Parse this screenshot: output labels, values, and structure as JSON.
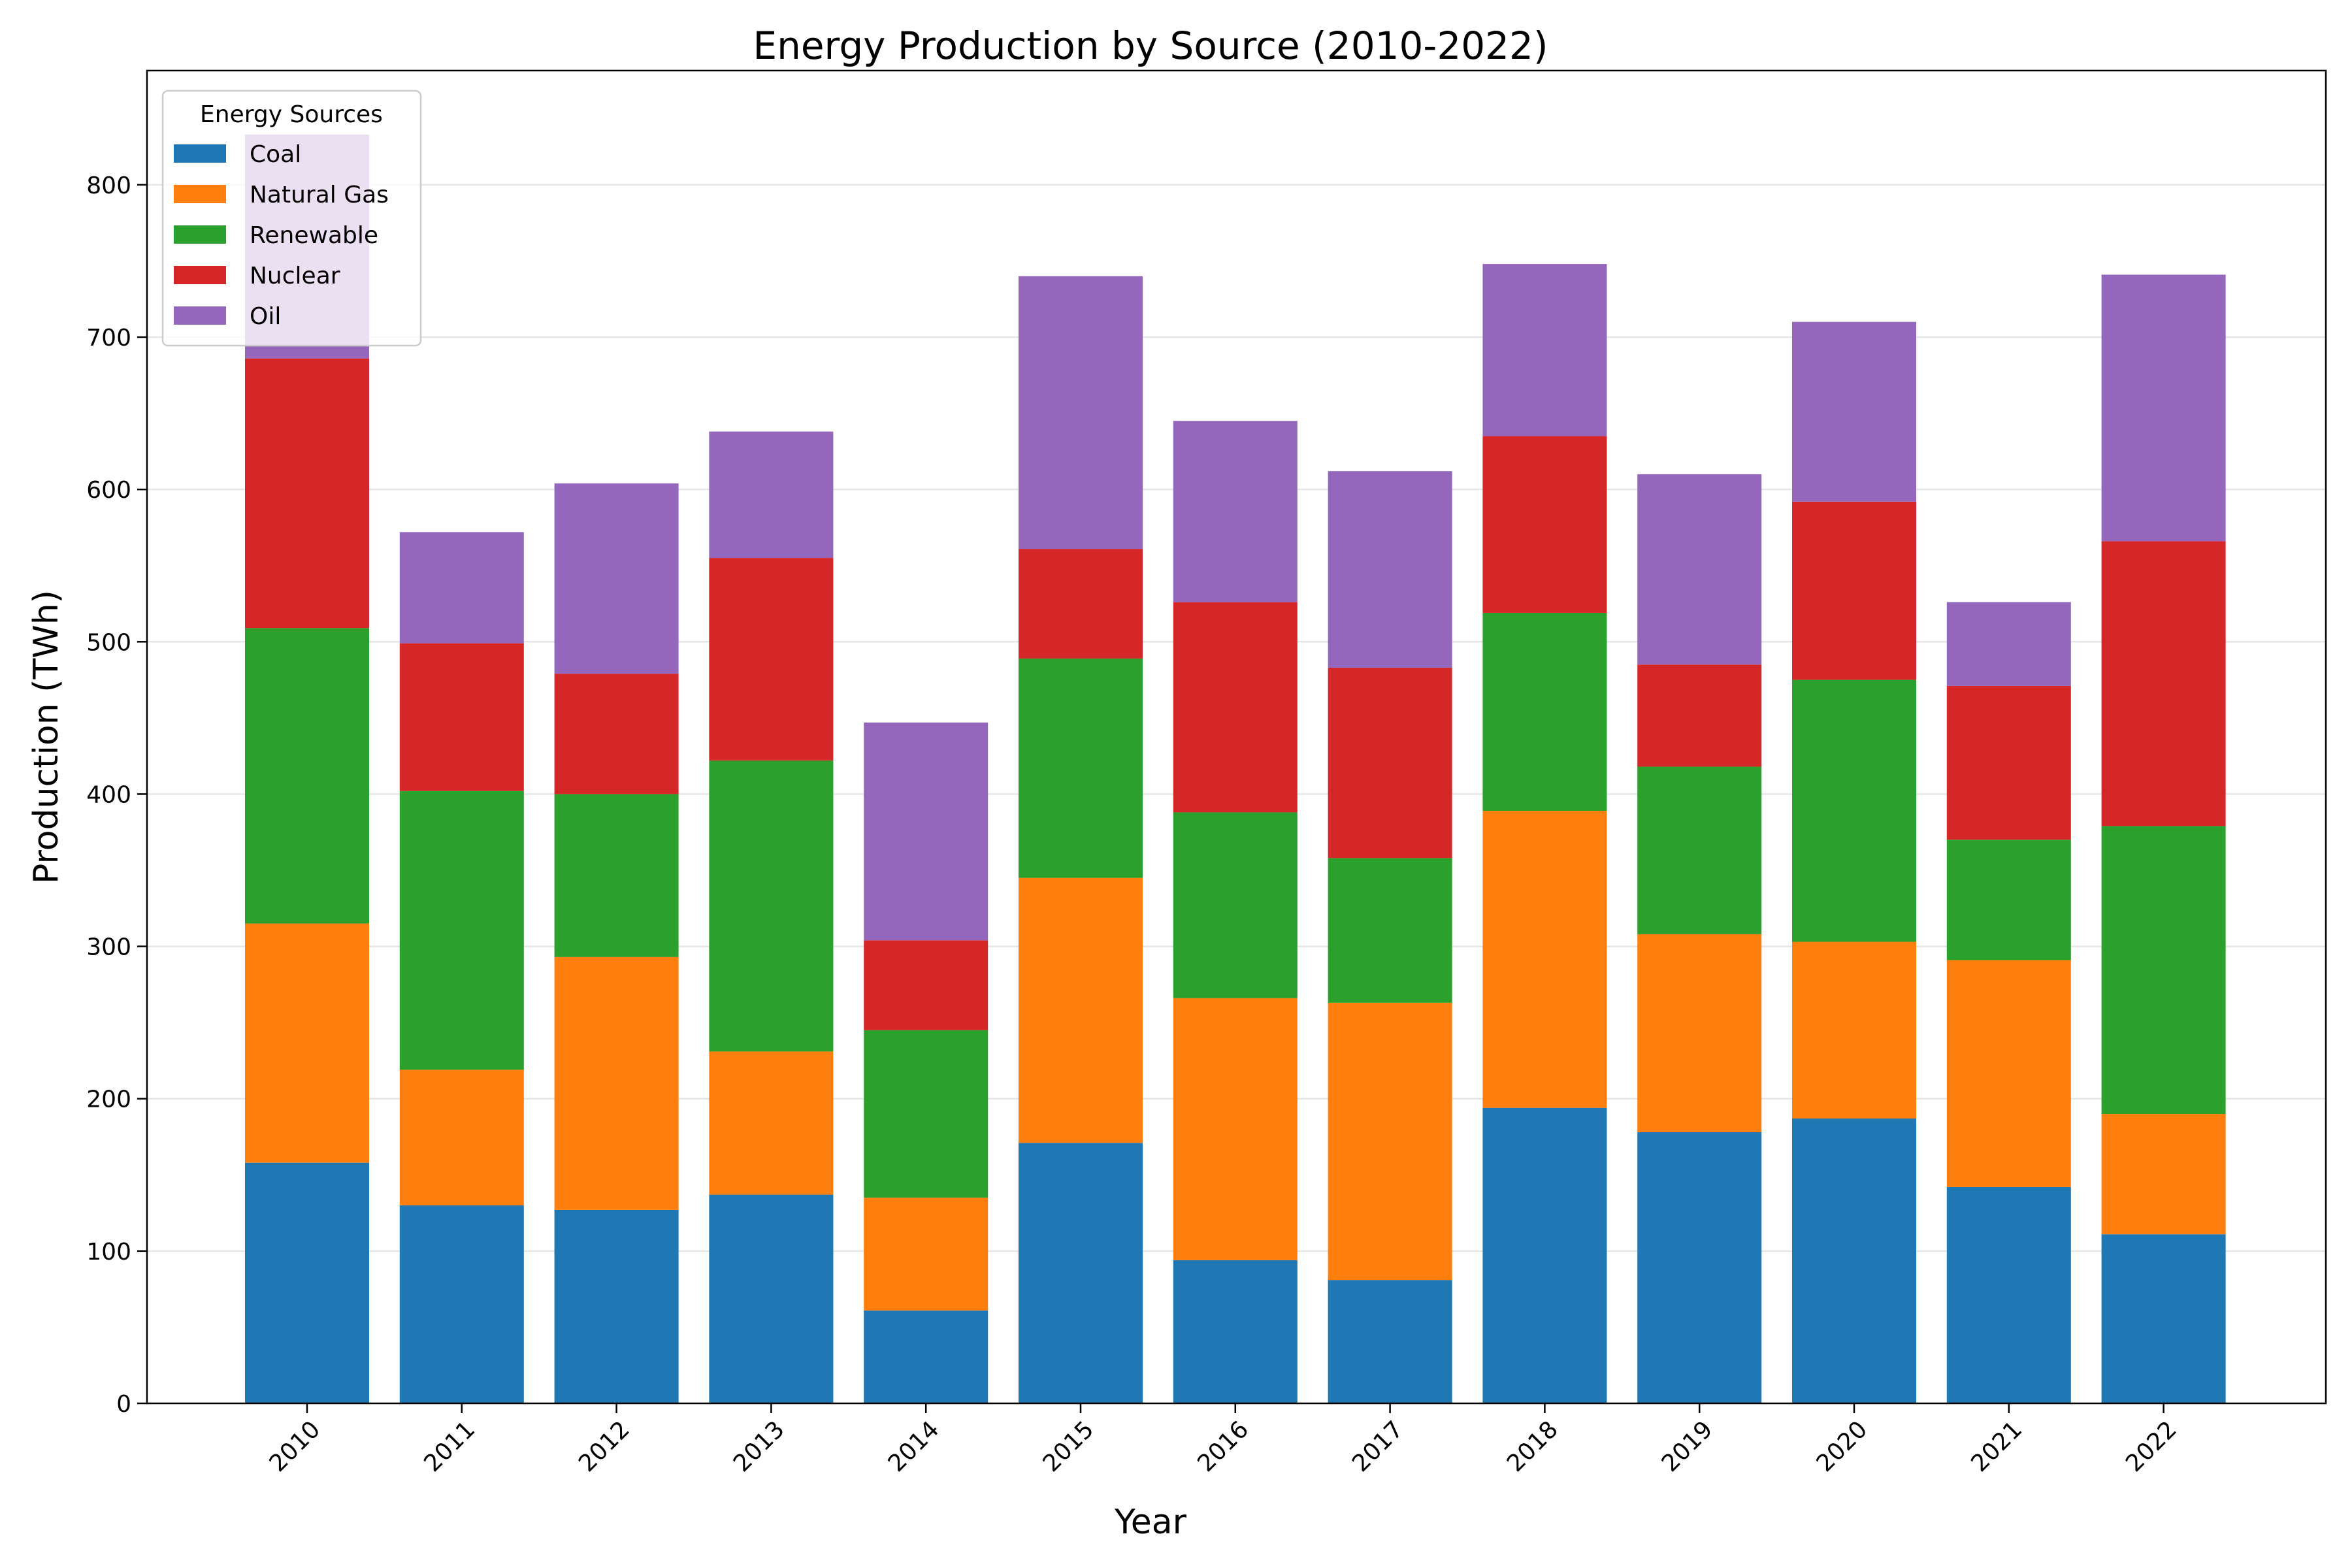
{
  "chart_data": {
    "type": "bar",
    "stacked": true,
    "title": "Energy Production by Source (2010-2022)",
    "xlabel": "Year",
    "ylabel": "Production (TWh)",
    "categories": [
      "2010",
      "2011",
      "2012",
      "2013",
      "2014",
      "2015",
      "2016",
      "2017",
      "2018",
      "2019",
      "2020",
      "2021",
      "2022"
    ],
    "ylim": [
      0,
      875
    ],
    "yticks": [
      0,
      100,
      200,
      300,
      400,
      500,
      600,
      700,
      800
    ],
    "grid": "horizontal",
    "legend": {
      "title": "Energy Sources",
      "position": "top-left"
    },
    "series": [
      {
        "name": "Coal",
        "color": "#1f77b4",
        "values": [
          158,
          130,
          127,
          137,
          61,
          171,
          94,
          81,
          194,
          178,
          187,
          142,
          111
        ]
      },
      {
        "name": "Natural Gas",
        "color": "#ff7f0e",
        "values": [
          157,
          89,
          166,
          94,
          74,
          174,
          172,
          182,
          195,
          130,
          116,
          149,
          79
        ]
      },
      {
        "name": "Renewable",
        "color": "#2ca02c",
        "values": [
          194,
          183,
          107,
          191,
          110,
          144,
          122,
          95,
          130,
          110,
          172,
          79,
          189
        ]
      },
      {
        "name": "Nuclear",
        "color": "#d62728",
        "values": [
          177,
          97,
          79,
          133,
          59,
          72,
          138,
          125,
          116,
          67,
          117,
          101,
          187
        ]
      },
      {
        "name": "Oil",
        "color": "#9467bd",
        "values": [
          147,
          73,
          125,
          83,
          143,
          179,
          119,
          129,
          113,
          125,
          118,
          55,
          175
        ]
      }
    ]
  }
}
